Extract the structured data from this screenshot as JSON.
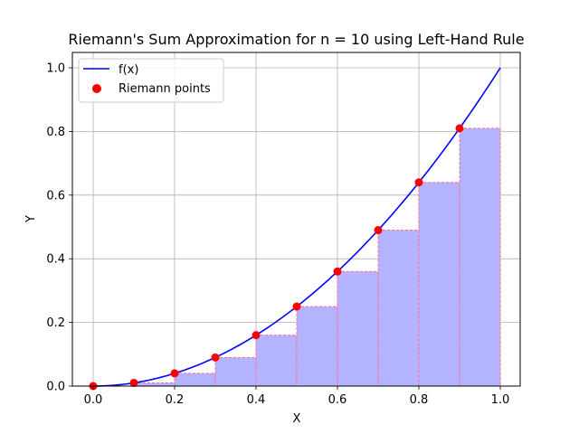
{
  "chart_data": {
    "type": "bar+line+scatter",
    "title": "Riemann's Sum Approximation for n = 10 using Left-Hand Rule",
    "xlabel": "X",
    "ylabel": "Y",
    "xlim": [
      -0.05,
      1.05
    ],
    "ylim": [
      0.0,
      1.05
    ],
    "grid": true,
    "legend_position": "upper left",
    "x_ticks": [
      "0.0",
      "0.2",
      "0.4",
      "0.6",
      "0.8",
      "1.0"
    ],
    "y_ticks": [
      "0.0",
      "0.2",
      "0.4",
      "0.6",
      "0.8",
      "1.0"
    ],
    "function": "f(x) = x^2",
    "series": [
      {
        "name": "f(x)",
        "kind": "line",
        "color": "#0000ff",
        "x": [
          0.0,
          0.1,
          0.2,
          0.3,
          0.4,
          0.5,
          0.6,
          0.7,
          0.8,
          0.9,
          1.0
        ],
        "values": [
          0.0,
          0.01,
          0.04,
          0.09,
          0.16,
          0.25,
          0.36,
          0.49,
          0.64,
          0.81,
          1.0
        ]
      },
      {
        "name": "Riemann points",
        "kind": "scatter",
        "color": "#ff0000",
        "x": [
          0.0,
          0.1,
          0.2,
          0.3,
          0.4,
          0.5,
          0.6,
          0.7,
          0.8,
          0.9
        ],
        "values": [
          0.0,
          0.01,
          0.04,
          0.09,
          0.16,
          0.25,
          0.36,
          0.49,
          0.64,
          0.81
        ]
      },
      {
        "name": "rectangles",
        "kind": "bar",
        "color": "#b3b3ff",
        "edge_color": "#ff6f8f",
        "x_left": [
          0.0,
          0.1,
          0.2,
          0.3,
          0.4,
          0.5,
          0.6,
          0.7,
          0.8,
          0.9
        ],
        "width": 0.1,
        "values": [
          0.0,
          0.01,
          0.04,
          0.09,
          0.16,
          0.25,
          0.36,
          0.49,
          0.64,
          0.81
        ]
      }
    ],
    "legend": [
      "f(x)",
      "Riemann points"
    ]
  }
}
